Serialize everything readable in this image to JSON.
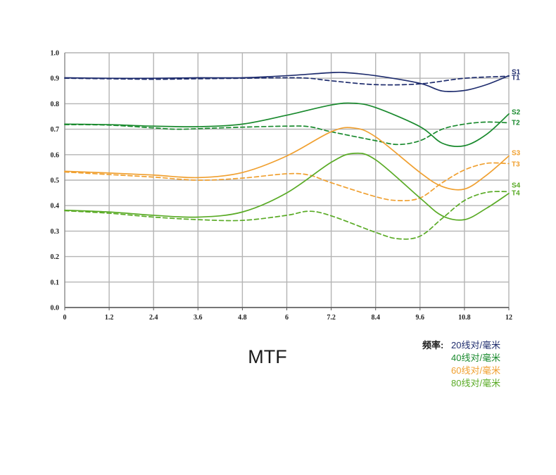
{
  "chart_data": {
    "type": "line",
    "title": "MTF",
    "xlim": [
      0,
      12
    ],
    "ylim": [
      0,
      1.0
    ],
    "x_ticks": [
      "0",
      "1.2",
      "2.4",
      "3.6",
      "4.8",
      "6",
      "7.2",
      "8.4",
      "9.6",
      "10.8",
      "12"
    ],
    "y_ticks": [
      "0.0",
      "0.1",
      "0.2",
      "0.3",
      "0.4",
      "0.5",
      "0.6",
      "0.7",
      "0.8",
      "0.9",
      "1.0"
    ],
    "grid": true,
    "series": [
      {
        "name": "S1",
        "color": "#1f2d6e",
        "style": "solid",
        "points": [
          [
            0,
            0.902
          ],
          [
            1.2,
            0.9
          ],
          [
            2.4,
            0.9
          ],
          [
            3.6,
            0.902
          ],
          [
            4.8,
            0.902
          ],
          [
            6,
            0.91
          ],
          [
            7.2,
            0.922
          ],
          [
            7.6,
            0.922
          ],
          [
            8.4,
            0.91
          ],
          [
            9.6,
            0.88
          ],
          [
            10.2,
            0.85
          ],
          [
            10.8,
            0.852
          ],
          [
            11.4,
            0.875
          ],
          [
            12,
            0.91
          ]
        ]
      },
      {
        "name": "T1",
        "color": "#1f2d6e",
        "style": "dashed",
        "points": [
          [
            0,
            0.9
          ],
          [
            1.2,
            0.898
          ],
          [
            2.4,
            0.896
          ],
          [
            3.6,
            0.898
          ],
          [
            4.8,
            0.9
          ],
          [
            6,
            0.902
          ],
          [
            6.6,
            0.9
          ],
          [
            7.2,
            0.89
          ],
          [
            8.4,
            0.875
          ],
          [
            9.6,
            0.878
          ],
          [
            10.8,
            0.9
          ],
          [
            12,
            0.908
          ]
        ]
      },
      {
        "name": "S2",
        "color": "#1a8a2e",
        "style": "solid",
        "points": [
          [
            0,
            0.72
          ],
          [
            1.2,
            0.718
          ],
          [
            2.4,
            0.712
          ],
          [
            3.6,
            0.71
          ],
          [
            4.8,
            0.72
          ],
          [
            6,
            0.755
          ],
          [
            7.2,
            0.795
          ],
          [
            7.8,
            0.802
          ],
          [
            8.4,
            0.785
          ],
          [
            9.6,
            0.71
          ],
          [
            10.2,
            0.645
          ],
          [
            10.8,
            0.635
          ],
          [
            11.4,
            0.68
          ],
          [
            12,
            0.76
          ]
        ]
      },
      {
        "name": "T2",
        "color": "#1a8a2e",
        "style": "dashed",
        "points": [
          [
            0,
            0.718
          ],
          [
            1.2,
            0.716
          ],
          [
            2.4,
            0.705
          ],
          [
            3.0,
            0.7
          ],
          [
            3.6,
            0.702
          ],
          [
            4.8,
            0.708
          ],
          [
            6,
            0.712
          ],
          [
            6.6,
            0.71
          ],
          [
            7.2,
            0.69
          ],
          [
            8.4,
            0.655
          ],
          [
            9.0,
            0.64
          ],
          [
            9.6,
            0.655
          ],
          [
            10.2,
            0.7
          ],
          [
            10.8,
            0.72
          ],
          [
            11.4,
            0.728
          ],
          [
            12,
            0.725
          ]
        ]
      },
      {
        "name": "S3",
        "color": "#f0a030",
        "style": "solid",
        "points": [
          [
            0,
            0.535
          ],
          [
            1.2,
            0.528
          ],
          [
            2.4,
            0.52
          ],
          [
            3.6,
            0.51
          ],
          [
            4.8,
            0.53
          ],
          [
            6,
            0.595
          ],
          [
            7.2,
            0.69
          ],
          [
            7.8,
            0.705
          ],
          [
            8.4,
            0.67
          ],
          [
            9.6,
            0.53
          ],
          [
            10.2,
            0.475
          ],
          [
            10.8,
            0.465
          ],
          [
            11.4,
            0.52
          ],
          [
            12,
            0.595
          ]
        ]
      },
      {
        "name": "T3",
        "color": "#f0a030",
        "style": "dashed",
        "points": [
          [
            0,
            0.532
          ],
          [
            1.2,
            0.522
          ],
          [
            2.4,
            0.512
          ],
          [
            3.6,
            0.5
          ],
          [
            4.8,
            0.508
          ],
          [
            6,
            0.525
          ],
          [
            6.6,
            0.52
          ],
          [
            7.2,
            0.49
          ],
          [
            8.4,
            0.435
          ],
          [
            9.0,
            0.42
          ],
          [
            9.6,
            0.43
          ],
          [
            10.2,
            0.49
          ],
          [
            10.8,
            0.54
          ],
          [
            11.4,
            0.566
          ],
          [
            12,
            0.565
          ]
        ]
      },
      {
        "name": "S4",
        "color": "#5aab26",
        "style": "solid",
        "points": [
          [
            0,
            0.382
          ],
          [
            1.2,
            0.375
          ],
          [
            2.4,
            0.362
          ],
          [
            3.6,
            0.355
          ],
          [
            4.8,
            0.375
          ],
          [
            6,
            0.45
          ],
          [
            7.2,
            0.57
          ],
          [
            7.8,
            0.605
          ],
          [
            8.4,
            0.58
          ],
          [
            9.6,
            0.43
          ],
          [
            10.2,
            0.36
          ],
          [
            10.8,
            0.345
          ],
          [
            11.4,
            0.39
          ],
          [
            12,
            0.448
          ]
        ]
      },
      {
        "name": "T4",
        "color": "#5aab26",
        "style": "dashed",
        "points": [
          [
            0,
            0.38
          ],
          [
            1.2,
            0.37
          ],
          [
            2.4,
            0.355
          ],
          [
            3.6,
            0.345
          ],
          [
            4.8,
            0.342
          ],
          [
            6,
            0.362
          ],
          [
            6.6,
            0.378
          ],
          [
            7.2,
            0.36
          ],
          [
            8.4,
            0.295
          ],
          [
            9.0,
            0.27
          ],
          [
            9.6,
            0.28
          ],
          [
            10.2,
            0.35
          ],
          [
            10.8,
            0.42
          ],
          [
            11.4,
            0.452
          ],
          [
            12,
            0.455
          ]
        ]
      }
    ]
  },
  "legend": {
    "prefix": "频率:",
    "entries": [
      {
        "text": "20线对/毫米",
        "color": "#1f2d6e"
      },
      {
        "text": "40线对/毫米",
        "color": "#1a8a2e"
      },
      {
        "text": "60线对/毫米",
        "color": "#f0a030"
      },
      {
        "text": "80线对/毫米",
        "color": "#5aab26"
      }
    ]
  }
}
